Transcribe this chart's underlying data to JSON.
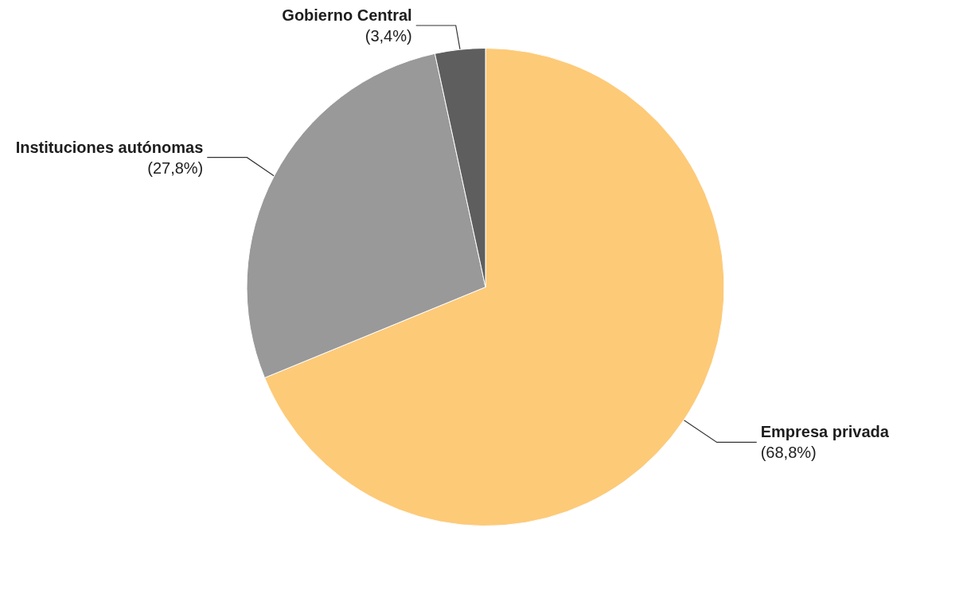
{
  "chart_data": {
    "type": "pie",
    "categories": [
      "Empresa privada",
      "Instituciones autónomas",
      "Gobierno Central"
    ],
    "values": [
      68.8,
      27.8,
      3.4
    ],
    "value_labels": [
      "(68,8%)",
      "(27,8%)",
      "(3,4%)"
    ],
    "colors": [
      "#fdca78",
      "#999999",
      "#5e5e5e"
    ]
  }
}
